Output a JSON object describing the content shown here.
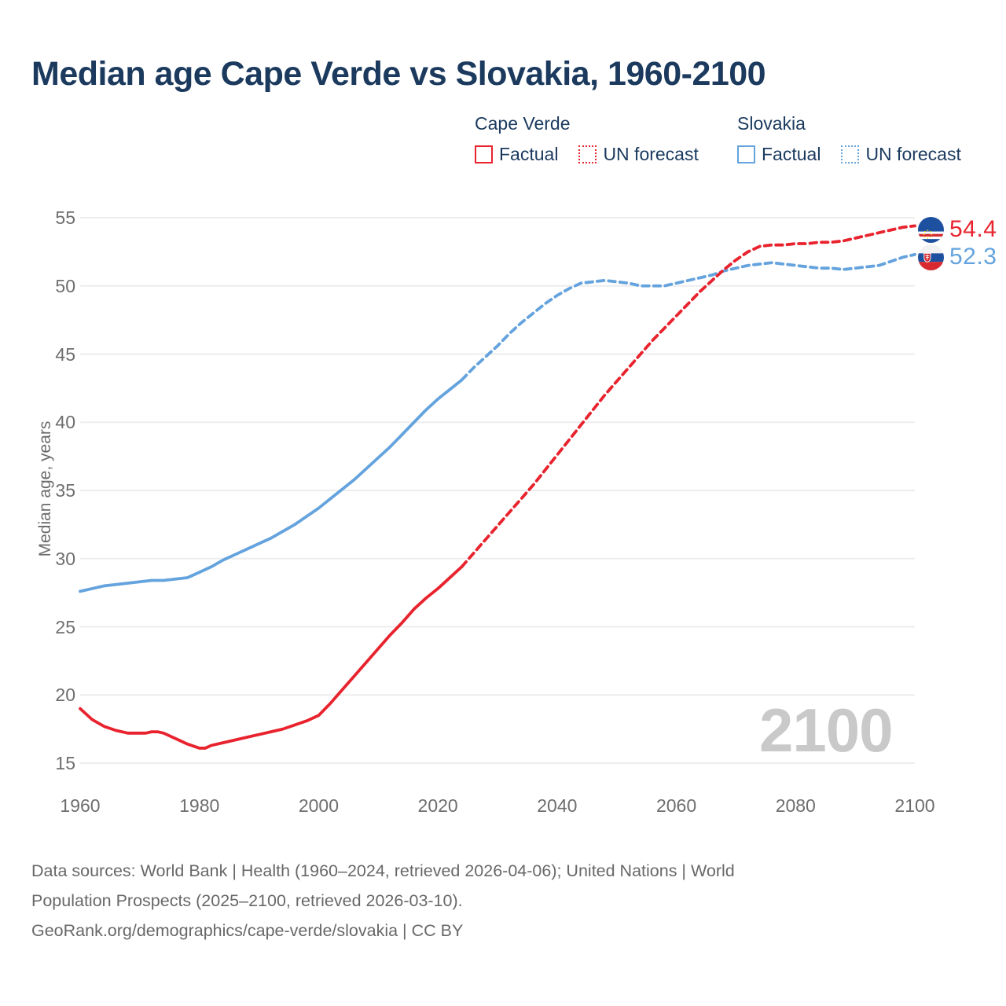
{
  "page": {
    "title": "Median age Cape Verde vs Slovakia, 1960-2100"
  },
  "colors": {
    "cape_verde": "#e8232e",
    "slovakia": "#64a3dd",
    "title": "#1b3a5e",
    "legend_text": "#1b3a5e",
    "axis_text": "#6e6e6e",
    "grid": "#ededed",
    "watermark": "#c9c9c9",
    "footer_text": "#686868"
  },
  "legend": {
    "groups": [
      {
        "name": "Cape Verde",
        "items": [
          {
            "label": "Factual",
            "line_style": "solid"
          },
          {
            "label": "UN forecast",
            "line_style": "dotted"
          }
        ]
      },
      {
        "name": "Slovakia",
        "items": [
          {
            "label": "Factual",
            "line_style": "solid"
          },
          {
            "label": "UN forecast",
            "line_style": "dotted"
          }
        ]
      }
    ]
  },
  "annotations": {
    "watermark": "2100",
    "end_labels": [
      {
        "series": "Cape Verde",
        "value": "54.4",
        "flag": "cape-verde-flag"
      },
      {
        "series": "Slovakia",
        "value": "52.3",
        "flag": "slovakia-flag"
      }
    ]
  },
  "footer": {
    "lines": [
      "Data sources: World Bank | Health (1960–2024, retrieved 2026-04-06); United Nations | World",
      "Population Prospects (2025–2100, retrieved 2026-03-10).",
      "GeoRank.org/demographics/cape-verde/slovakia | CC BY"
    ]
  },
  "chart_data": {
    "type": "line",
    "title": "Median age Cape Verde vs Slovakia, 1960-2100",
    "xlabel": "",
    "ylabel": "Median age, years",
    "xlim": [
      1960,
      2100
    ],
    "ylim": [
      15,
      55
    ],
    "x_ticks": [
      1960,
      1980,
      2000,
      2020,
      2040,
      2060,
      2080,
      2100
    ],
    "y_ticks": [
      15,
      20,
      25,
      30,
      35,
      40,
      45,
      50,
      55
    ],
    "grid": "horizontal",
    "legend_position": "top",
    "end_values": {
      "cape_verde": 54.4,
      "slovakia": 52.3
    },
    "series": [
      {
        "name": "Cape Verde — Factual",
        "color_key": "cape_verde",
        "style": "solid",
        "points": [
          [
            1960,
            19.0
          ],
          [
            1962,
            18.2
          ],
          [
            1964,
            17.7
          ],
          [
            1966,
            17.4
          ],
          [
            1968,
            17.2
          ],
          [
            1970,
            17.2
          ],
          [
            1971,
            17.2
          ],
          [
            1972,
            17.3
          ],
          [
            1973,
            17.3
          ],
          [
            1974,
            17.2
          ],
          [
            1976,
            16.8
          ],
          [
            1978,
            16.4
          ],
          [
            1980,
            16.1
          ],
          [
            1981,
            16.1
          ],
          [
            1982,
            16.3
          ],
          [
            1984,
            16.5
          ],
          [
            1986,
            16.7
          ],
          [
            1988,
            16.9
          ],
          [
            1990,
            17.1
          ],
          [
            1992,
            17.3
          ],
          [
            1994,
            17.5
          ],
          [
            1996,
            17.8
          ],
          [
            1998,
            18.1
          ],
          [
            2000,
            18.5
          ],
          [
            2002,
            19.4
          ],
          [
            2004,
            20.4
          ],
          [
            2006,
            21.4
          ],
          [
            2008,
            22.4
          ],
          [
            2010,
            23.4
          ],
          [
            2012,
            24.4
          ],
          [
            2014,
            25.3
          ],
          [
            2016,
            26.3
          ],
          [
            2018,
            27.1
          ],
          [
            2020,
            27.8
          ],
          [
            2022,
            28.6
          ],
          [
            2024,
            29.4
          ]
        ]
      },
      {
        "name": "Cape Verde — UN forecast",
        "color_key": "cape_verde",
        "style": "dashed",
        "points": [
          [
            2024,
            29.4
          ],
          [
            2026,
            30.4
          ],
          [
            2028,
            31.4
          ],
          [
            2030,
            32.4
          ],
          [
            2032,
            33.4
          ],
          [
            2034,
            34.4
          ],
          [
            2036,
            35.4
          ],
          [
            2038,
            36.5
          ],
          [
            2040,
            37.6
          ],
          [
            2042,
            38.7
          ],
          [
            2044,
            39.8
          ],
          [
            2046,
            40.9
          ],
          [
            2048,
            42.0
          ],
          [
            2050,
            43.0
          ],
          [
            2052,
            44.0
          ],
          [
            2054,
            45.0
          ],
          [
            2056,
            46.0
          ],
          [
            2058,
            46.9
          ],
          [
            2060,
            47.8
          ],
          [
            2062,
            48.7
          ],
          [
            2064,
            49.6
          ],
          [
            2066,
            50.4
          ],
          [
            2068,
            51.2
          ],
          [
            2070,
            51.9
          ],
          [
            2072,
            52.5
          ],
          [
            2074,
            52.9
          ],
          [
            2076,
            53.0
          ],
          [
            2078,
            53.0
          ],
          [
            2080,
            53.1
          ],
          [
            2082,
            53.1
          ],
          [
            2084,
            53.2
          ],
          [
            2086,
            53.2
          ],
          [
            2088,
            53.3
          ],
          [
            2090,
            53.5
          ],
          [
            2092,
            53.7
          ],
          [
            2094,
            53.9
          ],
          [
            2096,
            54.1
          ],
          [
            2098,
            54.3
          ],
          [
            2100,
            54.4
          ]
        ]
      },
      {
        "name": "Slovakia — Factual",
        "color_key": "slovakia",
        "style": "solid",
        "points": [
          [
            1960,
            27.6
          ],
          [
            1962,
            27.8
          ],
          [
            1964,
            28.0
          ],
          [
            1966,
            28.1
          ],
          [
            1968,
            28.2
          ],
          [
            1970,
            28.3
          ],
          [
            1972,
            28.4
          ],
          [
            1974,
            28.4
          ],
          [
            1976,
            28.5
          ],
          [
            1978,
            28.6
          ],
          [
            1980,
            29.0
          ],
          [
            1982,
            29.4
          ],
          [
            1984,
            29.9
          ],
          [
            1986,
            30.3
          ],
          [
            1988,
            30.7
          ],
          [
            1990,
            31.1
          ],
          [
            1992,
            31.5
          ],
          [
            1994,
            32.0
          ],
          [
            1996,
            32.5
          ],
          [
            1998,
            33.1
          ],
          [
            2000,
            33.7
          ],
          [
            2002,
            34.4
          ],
          [
            2004,
            35.1
          ],
          [
            2006,
            35.8
          ],
          [
            2008,
            36.6
          ],
          [
            2010,
            37.4
          ],
          [
            2012,
            38.2
          ],
          [
            2014,
            39.1
          ],
          [
            2016,
            40.0
          ],
          [
            2018,
            40.9
          ],
          [
            2020,
            41.7
          ],
          [
            2022,
            42.4
          ],
          [
            2024,
            43.1
          ]
        ]
      },
      {
        "name": "Slovakia — UN forecast",
        "color_key": "slovakia",
        "style": "dashed",
        "points": [
          [
            2024,
            43.1
          ],
          [
            2026,
            44.0
          ],
          [
            2028,
            44.8
          ],
          [
            2030,
            45.6
          ],
          [
            2032,
            46.5
          ],
          [
            2034,
            47.3
          ],
          [
            2036,
            48.0
          ],
          [
            2038,
            48.7
          ],
          [
            2040,
            49.3
          ],
          [
            2042,
            49.8
          ],
          [
            2044,
            50.2
          ],
          [
            2046,
            50.3
          ],
          [
            2048,
            50.4
          ],
          [
            2050,
            50.3
          ],
          [
            2052,
            50.2
          ],
          [
            2054,
            50.0
          ],
          [
            2056,
            50.0
          ],
          [
            2058,
            50.0
          ],
          [
            2060,
            50.2
          ],
          [
            2062,
            50.4
          ],
          [
            2064,
            50.6
          ],
          [
            2066,
            50.8
          ],
          [
            2068,
            51.1
          ],
          [
            2070,
            51.3
          ],
          [
            2072,
            51.5
          ],
          [
            2074,
            51.6
          ],
          [
            2076,
            51.7
          ],
          [
            2078,
            51.6
          ],
          [
            2080,
            51.5
          ],
          [
            2082,
            51.4
          ],
          [
            2084,
            51.3
          ],
          [
            2086,
            51.3
          ],
          [
            2088,
            51.2
          ],
          [
            2090,
            51.3
          ],
          [
            2092,
            51.4
          ],
          [
            2094,
            51.5
          ],
          [
            2096,
            51.8
          ],
          [
            2098,
            52.1
          ],
          [
            2100,
            52.3
          ]
        ]
      }
    ]
  }
}
